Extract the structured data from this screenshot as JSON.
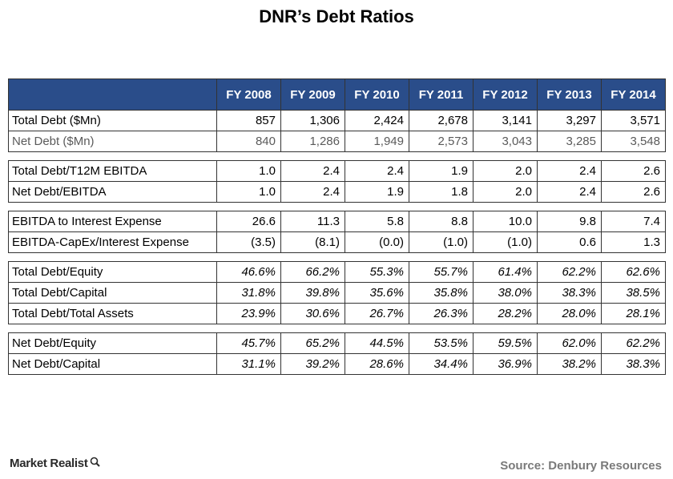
{
  "title": "DNR’s Debt Ratios",
  "chart_data": {
    "type": "table",
    "columns": [
      "FY 2008",
      "FY 2009",
      "FY 2010",
      "FY 2011",
      "FY 2012",
      "FY 2013",
      "FY 2014"
    ],
    "groups": [
      [
        {
          "label": "Total Debt ($Mn)",
          "values": [
            "857",
            "1,306",
            "2,424",
            "2,678",
            "3,141",
            "3,297",
            "3,571"
          ]
        },
        {
          "label": "Net Debt ($Mn)",
          "values": [
            "840",
            "1,286",
            "1,949",
            "2,573",
            "3,043",
            "3,285",
            "3,548"
          ],
          "muted": true
        }
      ],
      [
        {
          "label": "Total Debt/T12M EBITDA",
          "values": [
            "1.0",
            "2.4",
            "2.4",
            "1.9",
            "2.0",
            "2.4",
            "2.6"
          ]
        },
        {
          "label": "Net Debt/EBITDA",
          "values": [
            "1.0",
            "2.4",
            "1.9",
            "1.8",
            "2.0",
            "2.4",
            "2.6"
          ]
        }
      ],
      [
        {
          "label": "EBITDA to Interest Expense",
          "values": [
            "26.6",
            "11.3",
            "5.8",
            "8.8",
            "10.0",
            "9.8",
            "7.4"
          ]
        },
        {
          "label": "EBITDA-CapEx/Interest Expense",
          "values": [
            "(3.5)",
            "(8.1)",
            "(0.0)",
            "(1.0)",
            "(1.0)",
            "0.6",
            "1.3"
          ]
        }
      ],
      [
        {
          "label": "Total Debt/Equity",
          "values": [
            "46.6%",
            "66.2%",
            "55.3%",
            "55.7%",
            "61.4%",
            "62.2%",
            "62.6%"
          ],
          "italic": true
        },
        {
          "label": "Total Debt/Capital",
          "values": [
            "31.8%",
            "39.8%",
            "35.6%",
            "35.8%",
            "38.0%",
            "38.3%",
            "38.5%"
          ],
          "italic": true
        },
        {
          "label": "Total Debt/Total Assets",
          "values": [
            "23.9%",
            "30.6%",
            "26.7%",
            "26.3%",
            "28.2%",
            "28.0%",
            "28.1%"
          ],
          "italic": true
        }
      ],
      [
        {
          "label": "Net Debt/Equity",
          "values": [
            "45.7%",
            "65.2%",
            "44.5%",
            "53.5%",
            "59.5%",
            "62.0%",
            "62.2%"
          ],
          "italic": true
        },
        {
          "label": "Net Debt/Capital",
          "values": [
            "31.1%",
            "39.2%",
            "28.6%",
            "34.4%",
            "36.9%",
            "38.2%",
            "38.3%"
          ],
          "italic": true
        }
      ]
    ]
  },
  "footer": {
    "logo": "Market Realist",
    "source": "Source: Denbury Resources"
  },
  "colors": {
    "header_bg": "#2a4d8a",
    "muted_text": "#5a5a5a",
    "source_text": "#7a7a7a"
  }
}
